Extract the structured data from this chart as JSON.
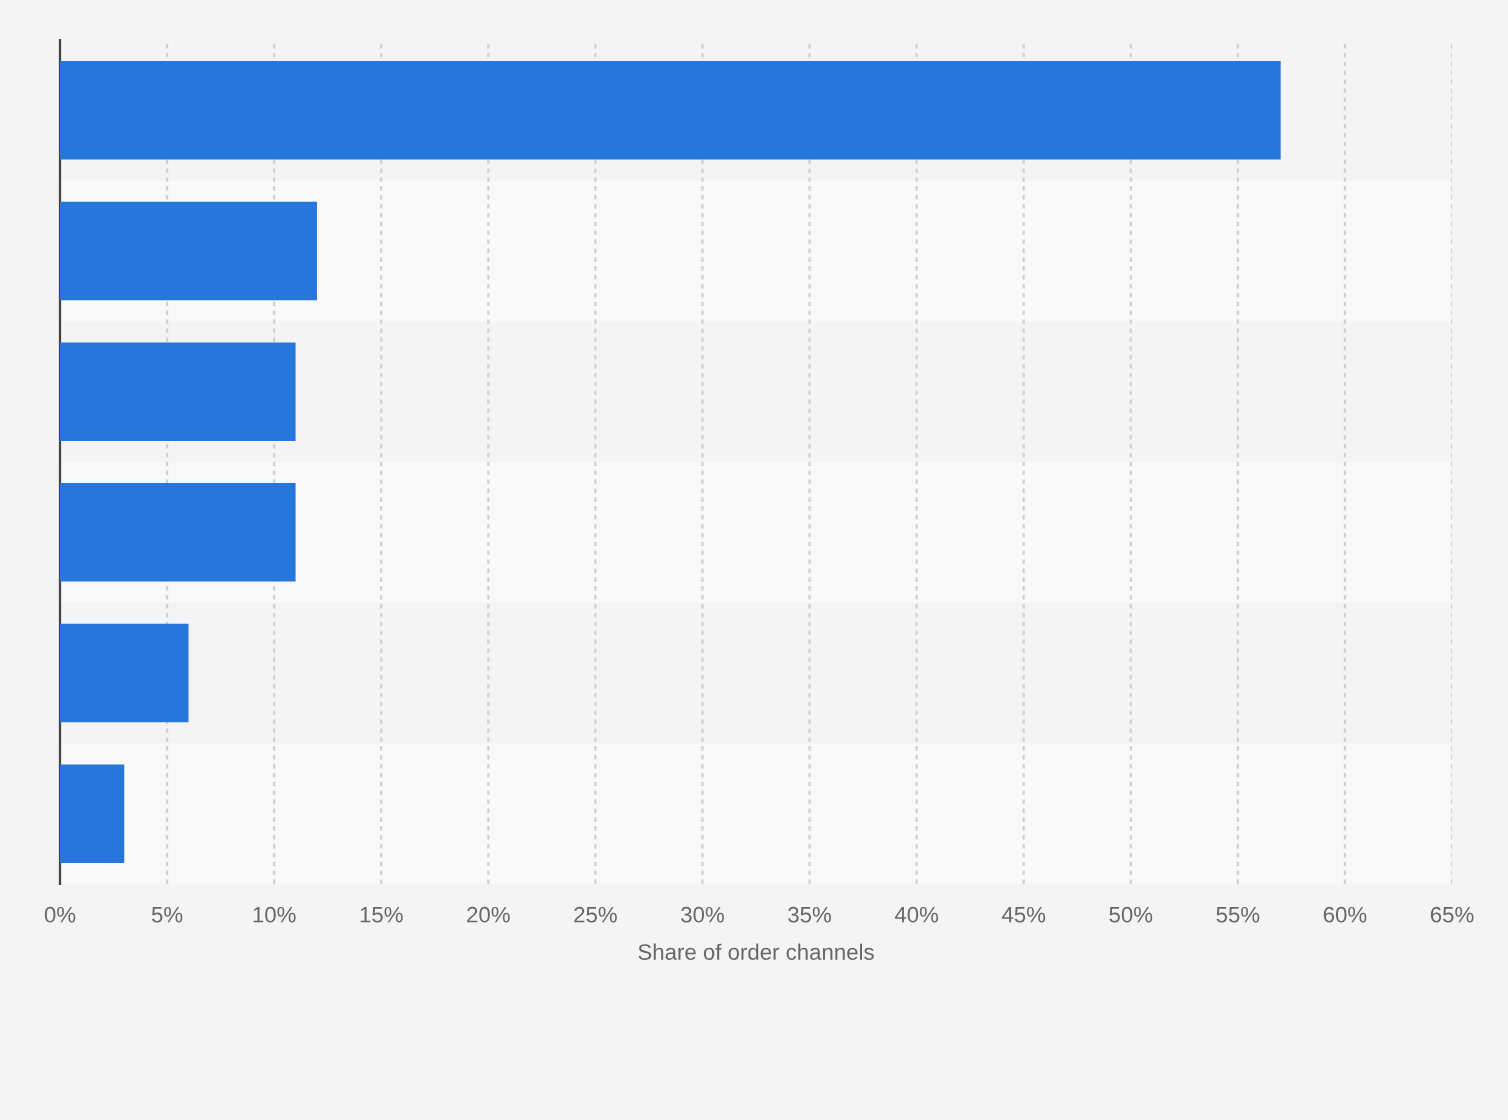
{
  "chart_data": {
    "type": "bar",
    "orientation": "horizontal",
    "categories": [
      null,
      null,
      null,
      null,
      null,
      null
    ],
    "values": [
      57,
      12,
      11,
      11,
      6,
      3
    ],
    "color": "#2776dc",
    "xlabel": "Share of order channels",
    "xlim": [
      0,
      65
    ],
    "xticks": [
      {
        "value": 0,
        "label": "0%"
      },
      {
        "value": 5,
        "label": "5%"
      },
      {
        "value": 10,
        "label": "10%"
      },
      {
        "value": 15,
        "label": "15%"
      },
      {
        "value": 20,
        "label": "20%"
      },
      {
        "value": 25,
        "label": "25%"
      },
      {
        "value": 30,
        "label": "30%"
      },
      {
        "value": 35,
        "label": "35%"
      },
      {
        "value": 40,
        "label": "40%"
      },
      {
        "value": 45,
        "label": "45%"
      },
      {
        "value": 50,
        "label": "50%"
      },
      {
        "value": 55,
        "label": "55%"
      },
      {
        "value": 60,
        "label": "60%"
      },
      {
        "value": 65,
        "label": "65%"
      }
    ],
    "grid": "x",
    "tick_labels": "x"
  }
}
